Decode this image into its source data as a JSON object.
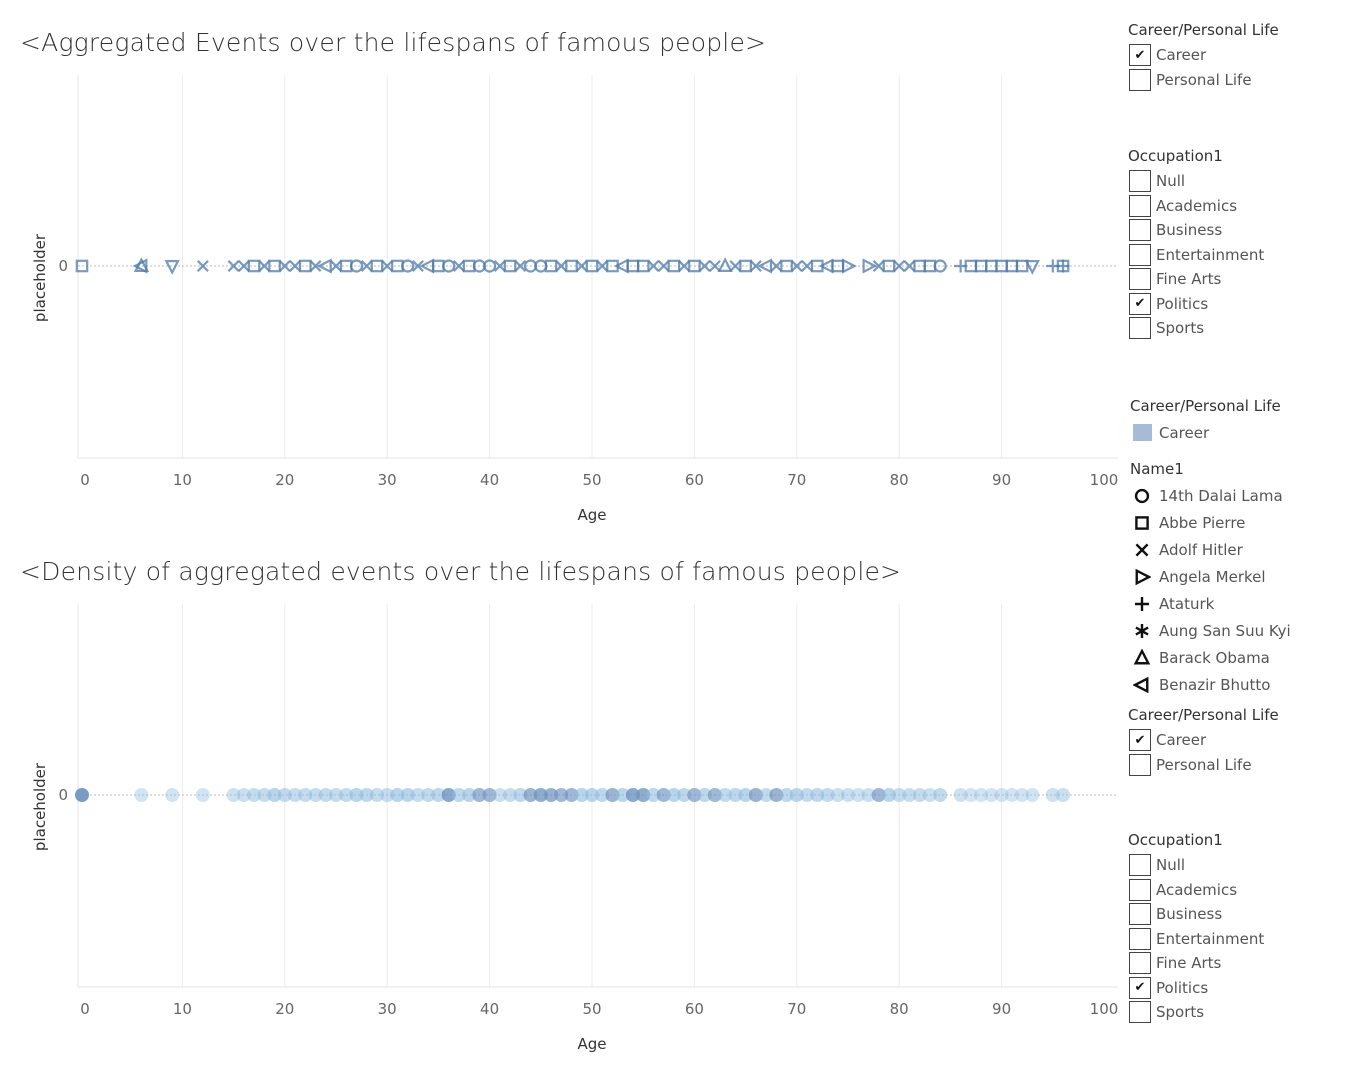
{
  "legend_color": "#a7bad6",
  "mark_color": "#4e79a7",
  "density_color": "#8fbbe0",
  "chart_data": [
    {
      "type": "scatter",
      "title": "<Aggregated Events over the lifespans of famous people>",
      "xlabel": "Age",
      "ylabel": "placeholder",
      "xlim": [
        0,
        100
      ],
      "xticks": [
        "0",
        "10",
        "20",
        "30",
        "40",
        "50",
        "60",
        "70",
        "80",
        "90",
        "100"
      ],
      "yticks": [
        "0"
      ],
      "grid": true,
      "points": [
        {
          "x": 0,
          "shape": "square"
        },
        {
          "x": 6,
          "shape": "triangle-up"
        },
        {
          "x": 6,
          "shape": "triangle-left"
        },
        {
          "x": 9,
          "shape": "triangle-down"
        },
        {
          "x": 12,
          "shape": "x"
        },
        {
          "x": 15,
          "shape": "x"
        },
        {
          "x": 16,
          "shape": "x"
        },
        {
          "x": 17,
          "shape": "square"
        },
        {
          "x": 18,
          "shape": "x"
        },
        {
          "x": 19,
          "shape": "square"
        },
        {
          "x": 20,
          "shape": "x"
        },
        {
          "x": 21,
          "shape": "x"
        },
        {
          "x": 22,
          "shape": "square"
        },
        {
          "x": 23,
          "shape": "x"
        },
        {
          "x": 24,
          "shape": "triangle-left"
        },
        {
          "x": 25,
          "shape": "x"
        },
        {
          "x": 26,
          "shape": "square"
        },
        {
          "x": 27,
          "shape": "circle"
        },
        {
          "x": 28,
          "shape": "x"
        },
        {
          "x": 29,
          "shape": "square"
        },
        {
          "x": 30,
          "shape": "x"
        },
        {
          "x": 31,
          "shape": "square"
        },
        {
          "x": 32,
          "shape": "circle"
        },
        {
          "x": 33,
          "shape": "x"
        },
        {
          "x": 34,
          "shape": "triangle-left"
        },
        {
          "x": 35,
          "shape": "square"
        },
        {
          "x": 36,
          "shape": "circle"
        },
        {
          "x": 37,
          "shape": "x"
        },
        {
          "x": 38,
          "shape": "square"
        },
        {
          "x": 39,
          "shape": "circle"
        },
        {
          "x": 40,
          "shape": "circle"
        },
        {
          "x": 41,
          "shape": "x"
        },
        {
          "x": 42,
          "shape": "square"
        },
        {
          "x": 43,
          "shape": "x"
        },
        {
          "x": 44,
          "shape": "circle"
        },
        {
          "x": 45,
          "shape": "circle"
        },
        {
          "x": 46,
          "shape": "square"
        },
        {
          "x": 47,
          "shape": "x"
        },
        {
          "x": 48,
          "shape": "square"
        },
        {
          "x": 49,
          "shape": "x"
        },
        {
          "x": 50,
          "shape": "square"
        },
        {
          "x": 51,
          "shape": "x"
        },
        {
          "x": 52,
          "shape": "square"
        },
        {
          "x": 53,
          "shape": "triangle-left"
        },
        {
          "x": 54,
          "shape": "square"
        },
        {
          "x": 55,
          "shape": "square"
        },
        {
          "x": 56,
          "shape": "x"
        },
        {
          "x": 57,
          "shape": "x"
        },
        {
          "x": 58,
          "shape": "square"
        },
        {
          "x": 59,
          "shape": "x"
        },
        {
          "x": 60,
          "shape": "square"
        },
        {
          "x": 61,
          "shape": "x"
        },
        {
          "x": 62,
          "shape": "x"
        },
        {
          "x": 63,
          "shape": "triangle-up"
        },
        {
          "x": 64,
          "shape": "x"
        },
        {
          "x": 65,
          "shape": "square"
        },
        {
          "x": 66,
          "shape": "x"
        },
        {
          "x": 67,
          "shape": "triangle-left"
        },
        {
          "x": 68,
          "shape": "x"
        },
        {
          "x": 69,
          "shape": "square"
        },
        {
          "x": 70,
          "shape": "x"
        },
        {
          "x": 71,
          "shape": "x"
        },
        {
          "x": 72,
          "shape": "square"
        },
        {
          "x": 73,
          "shape": "triangle-left"
        },
        {
          "x": 74,
          "shape": "square"
        },
        {
          "x": 75,
          "shape": "triangle-right"
        },
        {
          "x": 77,
          "shape": "triangle-right"
        },
        {
          "x": 78,
          "shape": "x"
        },
        {
          "x": 79,
          "shape": "square"
        },
        {
          "x": 80,
          "shape": "x"
        },
        {
          "x": 81,
          "shape": "x"
        },
        {
          "x": 82,
          "shape": "square"
        },
        {
          "x": 83,
          "shape": "square"
        },
        {
          "x": 84,
          "shape": "circle"
        },
        {
          "x": 86,
          "shape": "plus"
        },
        {
          "x": 87,
          "shape": "square"
        },
        {
          "x": 88,
          "shape": "square"
        },
        {
          "x": 89,
          "shape": "square"
        },
        {
          "x": 90,
          "shape": "square"
        },
        {
          "x": 91,
          "shape": "square"
        },
        {
          "x": 92,
          "shape": "square"
        },
        {
          "x": 93,
          "shape": "triangle-down"
        },
        {
          "x": 95,
          "shape": "plus"
        },
        {
          "x": 96,
          "shape": "square"
        },
        {
          "x": 96,
          "shape": "plus"
        }
      ]
    },
    {
      "type": "scatter",
      "title": "<Density of aggregated events over the lifespans of famous people>",
      "xlabel": "Age",
      "ylabel": "placeholder",
      "xlim": [
        0,
        100
      ],
      "xticks": [
        "0",
        "10",
        "20",
        "30",
        "40",
        "50",
        "60",
        "70",
        "80",
        "90",
        "100"
      ],
      "yticks": [
        "0"
      ],
      "grid": true,
      "points": [
        {
          "x": 0,
          "density": 0.9
        },
        {
          "x": 6,
          "density": 0.2
        },
        {
          "x": 9,
          "density": 0.2
        },
        {
          "x": 12,
          "density": 0.2
        },
        {
          "x": 15,
          "density": 0.25
        },
        {
          "x": 16,
          "density": 0.3
        },
        {
          "x": 17,
          "density": 0.35
        },
        {
          "x": 18,
          "density": 0.35
        },
        {
          "x": 19,
          "density": 0.5
        },
        {
          "x": 20,
          "density": 0.4
        },
        {
          "x": 21,
          "density": 0.35
        },
        {
          "x": 22,
          "density": 0.35
        },
        {
          "x": 23,
          "density": 0.35
        },
        {
          "x": 24,
          "density": 0.4
        },
        {
          "x": 25,
          "density": 0.35
        },
        {
          "x": 26,
          "density": 0.4
        },
        {
          "x": 27,
          "density": 0.5
        },
        {
          "x": 28,
          "density": 0.45
        },
        {
          "x": 29,
          "density": 0.35
        },
        {
          "x": 30,
          "density": 0.35
        },
        {
          "x": 31,
          "density": 0.5
        },
        {
          "x": 32,
          "density": 0.5
        },
        {
          "x": 33,
          "density": 0.35
        },
        {
          "x": 34,
          "density": 0.4
        },
        {
          "x": 35,
          "density": 0.45
        },
        {
          "x": 36,
          "density": 0.75
        },
        {
          "x": 37,
          "density": 0.45
        },
        {
          "x": 38,
          "density": 0.5
        },
        {
          "x": 39,
          "density": 0.55
        },
        {
          "x": 40,
          "density": 0.55
        },
        {
          "x": 41,
          "density": 0.3
        },
        {
          "x": 42,
          "density": 0.35
        },
        {
          "x": 43,
          "density": 0.45
        },
        {
          "x": 44,
          "density": 0.6
        },
        {
          "x": 45,
          "density": 0.7
        },
        {
          "x": 46,
          "density": 0.65
        },
        {
          "x": 47,
          "density": 0.55
        },
        {
          "x": 48,
          "density": 0.55
        },
        {
          "x": 49,
          "density": 0.5
        },
        {
          "x": 50,
          "density": 0.5
        },
        {
          "x": 51,
          "density": 0.45
        },
        {
          "x": 52,
          "density": 0.6
        },
        {
          "x": 53,
          "density": 0.5
        },
        {
          "x": 54,
          "density": 0.75
        },
        {
          "x": 55,
          "density": 0.7
        },
        {
          "x": 56,
          "density": 0.45
        },
        {
          "x": 57,
          "density": 0.55
        },
        {
          "x": 58,
          "density": 0.5
        },
        {
          "x": 59,
          "density": 0.45
        },
        {
          "x": 60,
          "density": 0.55
        },
        {
          "x": 61,
          "density": 0.45
        },
        {
          "x": 62,
          "density": 0.55
        },
        {
          "x": 63,
          "density": 0.4
        },
        {
          "x": 64,
          "density": 0.45
        },
        {
          "x": 65,
          "density": 0.5
        },
        {
          "x": 66,
          "density": 0.6
        },
        {
          "x": 67,
          "density": 0.4
        },
        {
          "x": 68,
          "density": 0.6
        },
        {
          "x": 69,
          "density": 0.45
        },
        {
          "x": 70,
          "density": 0.5
        },
        {
          "x": 71,
          "density": 0.4
        },
        {
          "x": 72,
          "density": 0.45
        },
        {
          "x": 73,
          "density": 0.4
        },
        {
          "x": 74,
          "density": 0.3
        },
        {
          "x": 75,
          "density": 0.3
        },
        {
          "x": 76,
          "density": 0.25
        },
        {
          "x": 77,
          "density": 0.3
        },
        {
          "x": 78,
          "density": 0.55
        },
        {
          "x": 79,
          "density": 0.5
        },
        {
          "x": 80,
          "density": 0.35
        },
        {
          "x": 81,
          "density": 0.35
        },
        {
          "x": 82,
          "density": 0.35
        },
        {
          "x": 83,
          "density": 0.3
        },
        {
          "x": 84,
          "density": 0.4
        },
        {
          "x": 86,
          "density": 0.25
        },
        {
          "x": 87,
          "density": 0.2
        },
        {
          "x": 88,
          "density": 0.2
        },
        {
          "x": 89,
          "density": 0.2
        },
        {
          "x": 90,
          "density": 0.2
        },
        {
          "x": 91,
          "density": 0.2
        },
        {
          "x": 92,
          "density": 0.2
        },
        {
          "x": 93,
          "density": 0.2
        },
        {
          "x": 95,
          "density": 0.25
        },
        {
          "x": 96,
          "density": 0.3
        }
      ]
    }
  ],
  "sidebar": {
    "career_filter_1": {
      "title": "Career/Personal Life",
      "items": [
        {
          "label": "Career",
          "checked": true
        },
        {
          "label": "Personal Life",
          "checked": false
        }
      ]
    },
    "occupation_filter_1": {
      "title": "Occupation1",
      "items": [
        {
          "label": "Null",
          "checked": false
        },
        {
          "label": "Academics",
          "checked": false
        },
        {
          "label": "Business",
          "checked": false
        },
        {
          "label": "Entertainment",
          "checked": false
        },
        {
          "label": "Fine Arts",
          "checked": false
        },
        {
          "label": "Politics",
          "checked": true
        },
        {
          "label": "Sports",
          "checked": false
        }
      ]
    },
    "color_legend": {
      "title": "Career/Personal Life",
      "items": [
        {
          "label": "Career"
        }
      ]
    },
    "shape_legend": {
      "title": "Name1",
      "items": [
        {
          "label": "14th Dalai Lama",
          "shape": "circle"
        },
        {
          "label": "Abbe Pierre",
          "shape": "square"
        },
        {
          "label": "Adolf Hitler",
          "shape": "x"
        },
        {
          "label": "Angela Merkel",
          "shape": "triangle-right"
        },
        {
          "label": "Ataturk",
          "shape": "plus"
        },
        {
          "label": "Aung San Suu Kyi",
          "shape": "asterisk"
        },
        {
          "label": "Barack Obama",
          "shape": "triangle-up"
        },
        {
          "label": "Benazir Bhutto",
          "shape": "triangle-left"
        }
      ]
    },
    "career_filter_2": {
      "title": "Career/Personal Life",
      "items": [
        {
          "label": "Career",
          "checked": true
        },
        {
          "label": "Personal Life",
          "checked": false
        }
      ]
    },
    "occupation_filter_2": {
      "title": "Occupation1",
      "items": [
        {
          "label": "Null",
          "checked": false
        },
        {
          "label": "Academics",
          "checked": false
        },
        {
          "label": "Business",
          "checked": false
        },
        {
          "label": "Entertainment",
          "checked": false
        },
        {
          "label": "Fine Arts",
          "checked": false
        },
        {
          "label": "Politics",
          "checked": true
        },
        {
          "label": "Sports",
          "checked": false
        }
      ]
    }
  }
}
